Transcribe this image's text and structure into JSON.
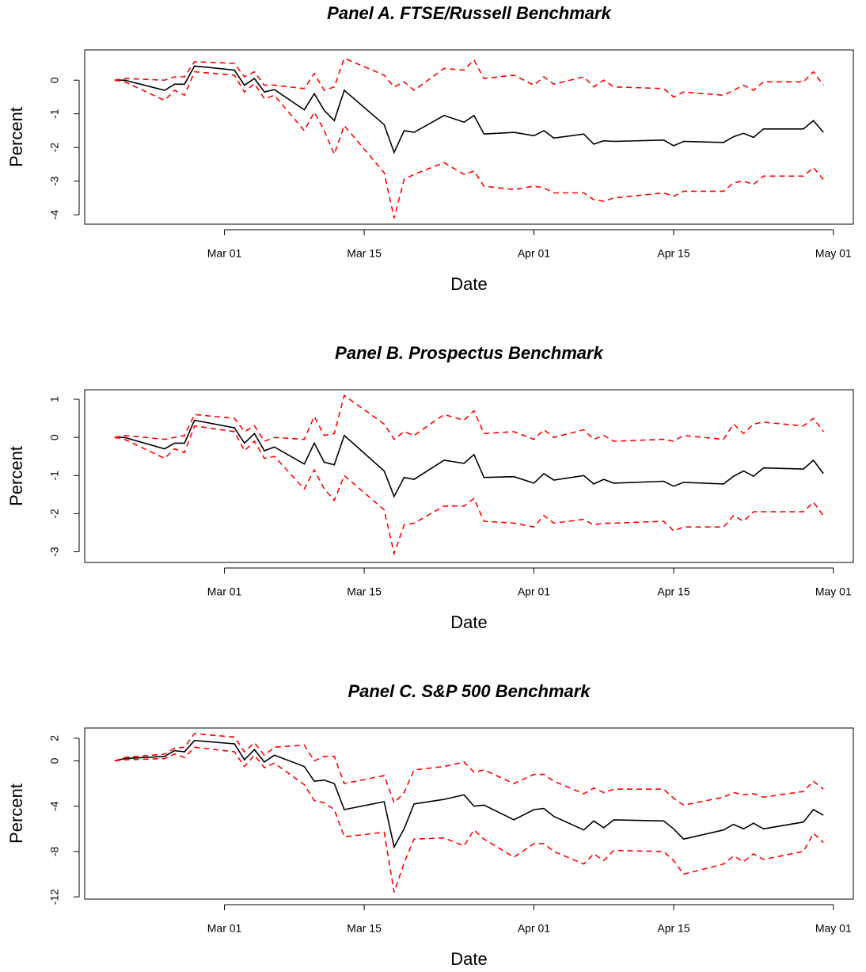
{
  "chart_data": [
    {
      "type": "line",
      "title": "Panel A. FTSE/Russell Benchmark",
      "xlabel": "Date",
      "ylabel": "Percent",
      "x": [
        "02-19",
        "02-20",
        "02-24",
        "02-25",
        "02-26",
        "02-27",
        "03-02",
        "03-03",
        "03-04",
        "03-05",
        "03-06",
        "03-09",
        "03-10",
        "03-11",
        "03-12",
        "03-13",
        "03-17",
        "03-18",
        "03-19",
        "03-20",
        "03-23",
        "03-25",
        "03-26",
        "03-27",
        "03-30",
        "04-01",
        "04-02",
        "04-03",
        "04-06",
        "04-07",
        "04-08",
        "04-09",
        "04-14",
        "04-15",
        "04-16",
        "04-20",
        "04-21",
        "04-22",
        "04-23",
        "04-24",
        "04-28",
        "04-29",
        "04-30"
      ],
      "xlim": [
        "02-16",
        "05-03"
      ],
      "xticks": [
        {
          "value": "03-01",
          "label": "Mar 01"
        },
        {
          "value": "03-15",
          "label": "Mar 15"
        },
        {
          "value": "04-01",
          "label": "Apr 01"
        },
        {
          "value": "04-15",
          "label": "Apr 15"
        },
        {
          "value": "05-01",
          "label": "May 01"
        }
      ],
      "ylim": [
        -4.28,
        0.9
      ],
      "yticks": [
        -4,
        -3,
        -2,
        -1,
        0
      ],
      "series": [
        {
          "color": "#000000",
          "linestyle": "solid",
          "values": [
            0,
            0,
            -0.3,
            -0.12,
            -0.12,
            0.42,
            0.3,
            -0.15,
            0.05,
            -0.35,
            -0.28,
            -0.88,
            -0.4,
            -0.9,
            -1.2,
            -0.3,
            -1.32,
            -2.15,
            -1.5,
            -1.55,
            -1.05,
            -1.25,
            -1.05,
            -1.6,
            -1.55,
            -1.65,
            -1.5,
            -1.72,
            -1.6,
            -1.9,
            -1.8,
            -1.82,
            -1.78,
            -1.95,
            -1.82,
            -1.85,
            -1.68,
            -1.58,
            -1.7,
            -1.45,
            -1.45,
            -1.2,
            -1.55
          ]
        },
        {
          "color": "#ff0000",
          "linestyle": "dashed",
          "values": [
            0,
            0.05,
            0,
            0.1,
            0.1,
            0.55,
            0.5,
            0.1,
            0.25,
            -0.15,
            -0.15,
            -0.25,
            0.2,
            -0.3,
            -0.2,
            0.65,
            0.15,
            -0.2,
            -0.05,
            -0.3,
            0.35,
            0.3,
            0.6,
            0.05,
            0.15,
            -0.15,
            0.1,
            -0.12,
            0.1,
            -0.2,
            0,
            -0.2,
            -0.25,
            -0.5,
            -0.35,
            -0.45,
            -0.3,
            -0.15,
            -0.3,
            -0.05,
            -0.05,
            0.25,
            -0.15
          ]
        },
        {
          "color": "#ff0000",
          "linestyle": "dashed",
          "values": [
            0,
            -0.05,
            -0.6,
            -0.3,
            -0.45,
            0.25,
            0.15,
            -0.35,
            -0.1,
            -0.55,
            -0.45,
            -1.5,
            -0.95,
            -1.5,
            -2.2,
            -1.35,
            -2.75,
            -4.1,
            -2.95,
            -2.8,
            -2.45,
            -2.8,
            -2.7,
            -3.15,
            -3.25,
            -3.15,
            -3.2,
            -3.35,
            -3.35,
            -3.55,
            -3.6,
            -3.5,
            -3.35,
            -3.45,
            -3.3,
            -3.3,
            -3.05,
            -3.0,
            -3.1,
            -2.85,
            -2.85,
            -2.6,
            -2.95
          ]
        }
      ]
    },
    {
      "type": "line",
      "title": "Panel B. Prospectus Benchmark",
      "xlabel": "Date",
      "ylabel": "Percent",
      "x": [
        "02-19",
        "02-20",
        "02-24",
        "02-25",
        "02-26",
        "02-27",
        "03-02",
        "03-03",
        "03-04",
        "03-05",
        "03-06",
        "03-09",
        "03-10",
        "03-11",
        "03-12",
        "03-13",
        "03-17",
        "03-18",
        "03-19",
        "03-20",
        "03-23",
        "03-25",
        "03-26",
        "03-27",
        "03-30",
        "04-01",
        "04-02",
        "04-03",
        "04-06",
        "04-07",
        "04-08",
        "04-09",
        "04-14",
        "04-15",
        "04-16",
        "04-20",
        "04-21",
        "04-22",
        "04-23",
        "04-24",
        "04-28",
        "04-29",
        "04-30"
      ],
      "xlim": [
        "02-16",
        "05-03"
      ],
      "xticks": [
        {
          "value": "03-01",
          "label": "Mar 01"
        },
        {
          "value": "03-15",
          "label": "Mar 15"
        },
        {
          "value": "04-01",
          "label": "Apr 01"
        },
        {
          "value": "04-15",
          "label": "Apr 15"
        },
        {
          "value": "05-01",
          "label": "May 01"
        }
      ],
      "ylim": [
        -3.28,
        1.25
      ],
      "yticks": [
        -3,
        -2,
        -1,
        0,
        1
      ],
      "series": [
        {
          "color": "#000000",
          "linestyle": "solid",
          "values": [
            0,
            0,
            -0.3,
            -0.15,
            -0.15,
            0.45,
            0.25,
            -0.15,
            0.1,
            -0.35,
            -0.25,
            -0.7,
            -0.15,
            -0.65,
            -0.72,
            0.05,
            -0.88,
            -1.55,
            -1.05,
            -1.1,
            -0.6,
            -0.68,
            -0.45,
            -1.05,
            -1.03,
            -1.2,
            -0.95,
            -1.12,
            -1.0,
            -1.22,
            -1.1,
            -1.2,
            -1.15,
            -1.28,
            -1.18,
            -1.22,
            -1.02,
            -0.88,
            -1.02,
            -0.8,
            -0.83,
            -0.6,
            -0.95
          ]
        },
        {
          "color": "#ff0000",
          "linestyle": "dashed",
          "values": [
            0,
            0.05,
            -0.05,
            0,
            0.05,
            0.6,
            0.5,
            0.15,
            0.3,
            -0.1,
            0,
            -0.05,
            0.55,
            0.05,
            0.1,
            1.1,
            0.35,
            -0.05,
            0.15,
            0.05,
            0.6,
            0.45,
            0.7,
            0.1,
            0.15,
            -0.05,
            0.2,
            0,
            0.2,
            -0.05,
            0.05,
            -0.1,
            -0.05,
            -0.1,
            0.05,
            -0.05,
            0.35,
            0.1,
            0.35,
            0.4,
            0.3,
            0.5,
            0.15
          ]
        },
        {
          "color": "#ff0000",
          "linestyle": "dashed",
          "values": [
            0,
            -0.05,
            -0.55,
            -0.3,
            -0.4,
            0.3,
            0.15,
            -0.35,
            -0.1,
            -0.55,
            -0.5,
            -1.35,
            -0.85,
            -1.35,
            -1.65,
            -1.0,
            -1.9,
            -3.05,
            -2.3,
            -2.25,
            -1.8,
            -1.8,
            -1.6,
            -2.2,
            -2.25,
            -2.35,
            -2.05,
            -2.25,
            -2.15,
            -2.3,
            -2.25,
            -2.25,
            -2.2,
            -2.45,
            -2.35,
            -2.35,
            -2.05,
            -2.2,
            -1.95,
            -1.95,
            -1.95,
            -1.7,
            -2.05
          ]
        }
      ]
    },
    {
      "type": "line",
      "title": "Panel C. S&P 500 Benchmark",
      "xlabel": "Date",
      "ylabel": "Percent",
      "x": [
        "02-19",
        "02-20",
        "02-24",
        "02-25",
        "02-26",
        "02-27",
        "03-02",
        "03-03",
        "03-04",
        "03-05",
        "03-06",
        "03-09",
        "03-10",
        "03-11",
        "03-12",
        "03-13",
        "03-17",
        "03-18",
        "03-19",
        "03-20",
        "03-23",
        "03-25",
        "03-26",
        "03-27",
        "03-30",
        "04-01",
        "04-02",
        "04-03",
        "04-06",
        "04-07",
        "04-08",
        "04-09",
        "04-14",
        "04-15",
        "04-16",
        "04-20",
        "04-21",
        "04-22",
        "04-23",
        "04-24",
        "04-28",
        "04-29",
        "04-30"
      ],
      "xlim": [
        "02-16",
        "05-03"
      ],
      "xticks": [
        {
          "value": "03-01",
          "label": "Mar 01"
        },
        {
          "value": "03-15",
          "label": "Mar 15"
        },
        {
          "value": "04-01",
          "label": "Apr 01"
        },
        {
          "value": "04-15",
          "label": "Apr 15"
        },
        {
          "value": "05-01",
          "label": "May 01"
        }
      ],
      "ylim": [
        -12.2,
        2.9
      ],
      "yticks": [
        -12,
        -8,
        -4,
        0,
        2
      ],
      "series": [
        {
          "color": "#000000",
          "linestyle": "solid",
          "values": [
            0,
            0.2,
            0.4,
            0.9,
            0.8,
            1.8,
            1.5,
            0.1,
            1.0,
            -0.1,
            0.5,
            -0.5,
            -1.8,
            -1.7,
            -2.0,
            -4.3,
            -3.6,
            -7.6,
            -6.0,
            -3.8,
            -3.4,
            -3.0,
            -4.0,
            -3.9,
            -5.2,
            -4.3,
            -4.2,
            -4.9,
            -6.1,
            -5.3,
            -5.9,
            -5.2,
            -5.3,
            -6.0,
            -6.9,
            -6.1,
            -5.6,
            -6.0,
            -5.5,
            -6.0,
            -5.4,
            -4.3,
            -4.8
          ]
        },
        {
          "color": "#ff0000",
          "linestyle": "dashed",
          "values": [
            0,
            0.3,
            0.6,
            1.1,
            1.2,
            2.4,
            2.1,
            0.8,
            1.6,
            0.5,
            1.2,
            1.4,
            0,
            0.4,
            0.4,
            -2.0,
            -1.3,
            -3.7,
            -2.8,
            -0.8,
            -0.5,
            -0.1,
            -1.0,
            -0.8,
            -2.0,
            -1.2,
            -1.2,
            -1.8,
            -2.9,
            -2.4,
            -2.8,
            -2.5,
            -2.5,
            -3.3,
            -3.9,
            -3.2,
            -2.8,
            -3.0,
            -2.9,
            -3.2,
            -2.7,
            -1.8,
            -2.5
          ]
        },
        {
          "color": "#ff0000",
          "linestyle": "dashed",
          "values": [
            0,
            0.1,
            0.2,
            0.6,
            0.3,
            1.2,
            0.8,
            -0.5,
            0.5,
            -0.6,
            -0.2,
            -2.1,
            -3.5,
            -3.7,
            -4.3,
            -6.7,
            -6.3,
            -11.6,
            -9.0,
            -6.9,
            -6.8,
            -7.5,
            -6.1,
            -6.9,
            -8.5,
            -7.3,
            -7.3,
            -8.0,
            -9.1,
            -8.2,
            -8.8,
            -7.9,
            -8.0,
            -8.8,
            -10.0,
            -9.1,
            -8.4,
            -8.9,
            -8.2,
            -8.7,
            -8.0,
            -6.4,
            -7.2
          ]
        }
      ]
    }
  ]
}
